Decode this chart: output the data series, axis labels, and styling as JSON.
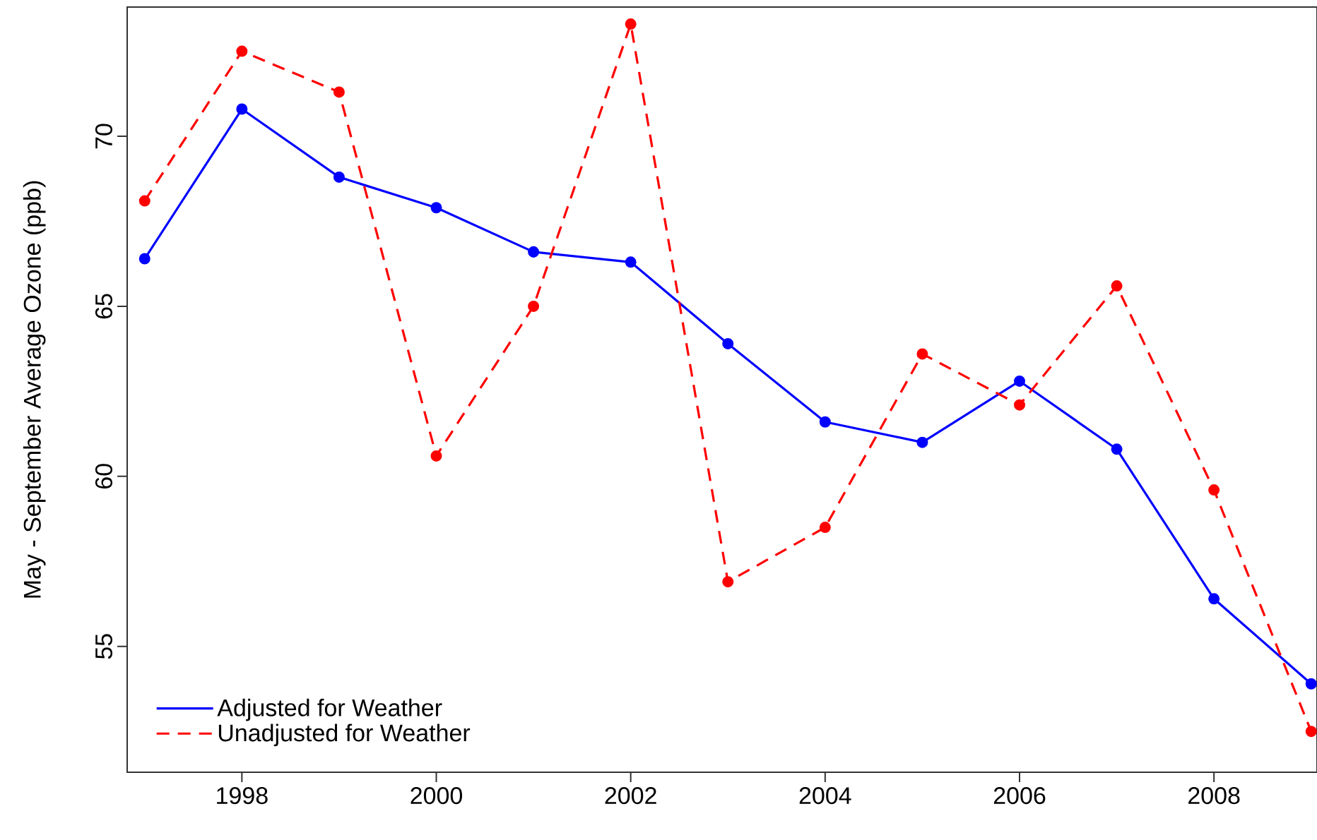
{
  "chart_data": {
    "type": "line",
    "ylabel": "May - September Average Ozone (ppb)",
    "x": [
      1997,
      1998,
      1999,
      2000,
      2001,
      2002,
      2003,
      2004,
      2005,
      2006,
      2007,
      2008,
      2009
    ],
    "series": [
      {
        "name": "Adjusted for Weather",
        "color": "#0000ff",
        "line_style": "solid",
        "values": [
          66.4,
          70.8,
          68.8,
          67.9,
          66.6,
          66.3,
          63.9,
          61.6,
          61.0,
          62.8,
          60.8,
          56.4,
          53.9
        ]
      },
      {
        "name": "Unadjusted for Weather",
        "color": "#ff0000",
        "line_style": "dashed",
        "values": [
          68.1,
          72.5,
          71.3,
          60.6,
          65.0,
          73.3,
          56.9,
          58.5,
          63.6,
          62.1,
          65.6,
          59.6,
          52.5
        ]
      }
    ],
    "xlim": [
      1996.82,
      2009.06
    ],
    "ylim": [
      51.3,
      73.8
    ],
    "xticks": [
      1998,
      2000,
      2002,
      2004,
      2006,
      2008
    ],
    "yticks": [
      55,
      60,
      65,
      70
    ],
    "marker": "circle",
    "legend": "bottom left",
    "grid": false
  }
}
